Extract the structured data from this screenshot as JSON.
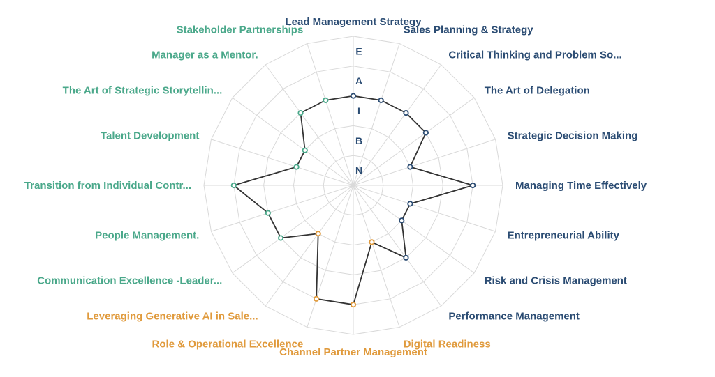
{
  "chart_data": {
    "type": "radar",
    "rings": [
      "N",
      "B",
      "I",
      "A",
      "E"
    ],
    "colors": {
      "grid": "#d9d9d9",
      "line": "#333333",
      "group_blue": "#2b4c73",
      "group_orange": "#e09a3c",
      "group_green": "#4aa88a"
    },
    "axes": [
      {
        "label": "Lead Management Strategy",
        "value": 3.0,
        "group": "blue"
      },
      {
        "label": "Sales Planning & Strategy",
        "value": 3.0,
        "group": "blue"
      },
      {
        "label": "Critical Thinking and Problem So...",
        "value": 3.0,
        "group": "blue"
      },
      {
        "label": "The Art of Delegation",
        "value": 3.0,
        "group": "blue"
      },
      {
        "label": "Strategic Decision Making",
        "value": 2.0,
        "group": "blue"
      },
      {
        "label": "Managing Time Effectively",
        "value": 4.0,
        "group": "blue"
      },
      {
        "label": "Entrepreneurial Ability",
        "value": 2.0,
        "group": "blue"
      },
      {
        "label": "Risk and Crisis Management",
        "value": 2.0,
        "group": "blue"
      },
      {
        "label": "Performance Management",
        "value": 3.0,
        "group": "blue"
      },
      {
        "label": "Digital Readiness",
        "value": 2.0,
        "group": "orange"
      },
      {
        "label": "Channel Partner Management",
        "value": 4.0,
        "group": "orange"
      },
      {
        "label": "Role & Operational Excellence",
        "value": 4.0,
        "group": "orange"
      },
      {
        "label": "Leveraging Generative AI in Sale...",
        "value": 2.0,
        "group": "orange"
      },
      {
        "label": "Communication Excellence -Leader...",
        "value": 3.0,
        "group": "green"
      },
      {
        "label": "People Management.",
        "value": 3.0,
        "group": "green"
      },
      {
        "label": "Transition from Individual Contr...",
        "value": 4.0,
        "group": "green"
      },
      {
        "label": "Talent Development",
        "value": 2.0,
        "group": "green"
      },
      {
        "label": "The Art of Strategic Storytellin...",
        "value": 2.0,
        "group": "green"
      },
      {
        "label": "Manager as a Mentor.",
        "value": 3.0,
        "group": "green"
      },
      {
        "label": "Stakeholder Partnerships",
        "value": 3.0,
        "group": "green"
      }
    ]
  }
}
